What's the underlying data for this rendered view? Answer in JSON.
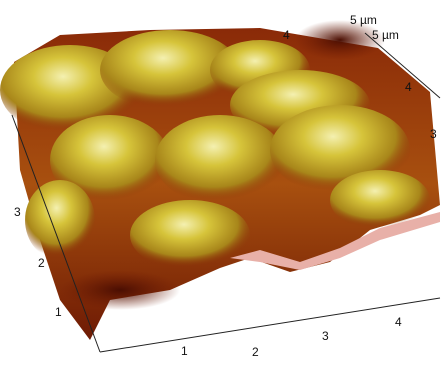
{
  "axes": {
    "back_top": {
      "labels": [
        "4",
        "5 µm"
      ]
    },
    "back_right": {
      "labels": [
        "5 µm",
        "4",
        "3"
      ]
    },
    "left": {
      "labels": [
        "3",
        "2",
        "1"
      ]
    },
    "bottom": {
      "labels": [
        "1",
        "2",
        "3",
        "4"
      ]
    }
  }
}
